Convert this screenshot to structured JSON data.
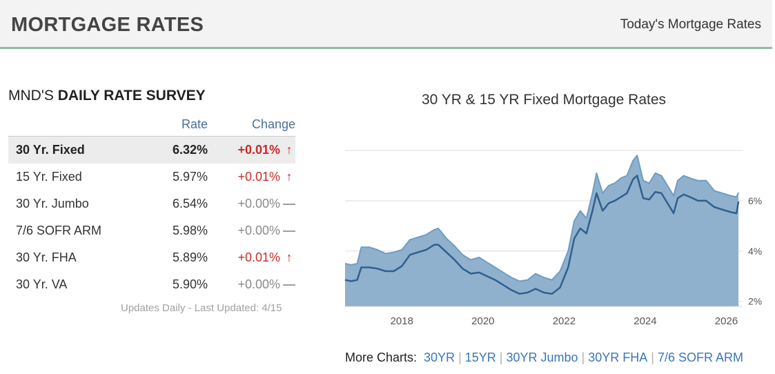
{
  "header": {
    "title": "MORTGAGE RATES",
    "link": "Today's Mortgage Rates"
  },
  "survey": {
    "title_prefix": "MND'S",
    "title_bold": "DAILY RATE SURVEY",
    "col_rate": "Rate",
    "col_change": "Change",
    "rows": [
      {
        "product": "30 Yr. Fixed",
        "rate": "6.32%",
        "change": "+0.01%",
        "dir": "up"
      },
      {
        "product": "15 Yr. Fixed",
        "rate": "5.97%",
        "change": "+0.01%",
        "dir": "up"
      },
      {
        "product": "30 Yr. Jumbo",
        "rate": "6.54%",
        "change": "+0.00%",
        "dir": "flat"
      },
      {
        "product": "7/6 SOFR ARM",
        "rate": "5.98%",
        "change": "+0.00%",
        "dir": "flat"
      },
      {
        "product": "30 Yr. FHA",
        "rate": "5.89%",
        "change": "+0.01%",
        "dir": "up"
      },
      {
        "product": "30 Yr. VA",
        "rate": "5.90%",
        "change": "+0.00%",
        "dir": "flat"
      }
    ],
    "updated": "Updates Daily - Last Updated: 4/15"
  },
  "colors": {
    "accent": "#8bbfa3",
    "header_link": "#4a6f9a",
    "up": "#cc2a2a",
    "flat": "#8a8a8a",
    "series_30yr": "#6f9cc2",
    "series_15yr": "#2e5f8f"
  },
  "chart_data": {
    "type": "area",
    "title": "30 YR & 15 YR Fixed Mortgage Rates",
    "xlabel": "",
    "ylabel": "",
    "xlim": [
      2016.6,
      2026.4
    ],
    "ylim": [
      1.8,
      8.0
    ],
    "xticks": [
      2018,
      2020,
      2022,
      2024,
      2026
    ],
    "yticks": [
      2,
      4,
      6
    ],
    "ytick_labels": [
      "2%",
      "4%",
      "6%"
    ],
    "grid": true,
    "series": [
      {
        "x": [
          2016.6,
          2016.75,
          2016.9,
          2017.0,
          2017.2,
          2017.4,
          2017.6,
          2017.8,
          2018.0,
          2018.2,
          2018.4,
          2018.6,
          2018.8,
          2018.9,
          2019.1,
          2019.3,
          2019.5,
          2019.7,
          2019.9,
          2020.1,
          2020.3,
          2020.5,
          2020.7,
          2020.9,
          2021.1,
          2021.3,
          2021.5,
          2021.7,
          2021.9,
          2022.1,
          2022.25,
          2022.4,
          2022.55,
          2022.7,
          2022.8,
          2022.95,
          2023.1,
          2023.25,
          2023.4,
          2023.55,
          2023.7,
          2023.8,
          2023.95,
          2024.1,
          2024.25,
          2024.4,
          2024.55,
          2024.7,
          2024.8,
          2024.95,
          2025.1,
          2025.3,
          2025.5,
          2025.7,
          2025.9,
          2026.1,
          2026.25,
          2026.3
        ],
        "values": [
          3.5,
          3.45,
          3.5,
          4.15,
          4.15,
          4.05,
          3.9,
          3.95,
          4.05,
          4.45,
          4.55,
          4.65,
          4.85,
          4.9,
          4.5,
          4.2,
          3.85,
          3.65,
          3.75,
          3.55,
          3.35,
          3.15,
          2.95,
          2.8,
          2.85,
          3.1,
          2.95,
          2.85,
          3.2,
          4.0,
          5.2,
          5.6,
          5.3,
          6.3,
          7.1,
          6.3,
          6.6,
          6.7,
          6.9,
          7.0,
          7.6,
          7.8,
          6.8,
          6.7,
          7.1,
          7.0,
          6.6,
          6.2,
          6.8,
          7.0,
          6.9,
          6.8,
          6.8,
          6.4,
          6.3,
          6.2,
          6.15,
          6.32
        ]
      },
      {
        "x": [
          2016.6,
          2016.75,
          2016.9,
          2017.0,
          2017.2,
          2017.4,
          2017.6,
          2017.8,
          2018.0,
          2018.2,
          2018.4,
          2018.6,
          2018.8,
          2018.9,
          2019.1,
          2019.3,
          2019.5,
          2019.7,
          2019.9,
          2020.1,
          2020.3,
          2020.5,
          2020.7,
          2020.9,
          2021.1,
          2021.3,
          2021.5,
          2021.7,
          2021.9,
          2022.1,
          2022.25,
          2022.4,
          2022.55,
          2022.7,
          2022.8,
          2022.95,
          2023.1,
          2023.25,
          2023.4,
          2023.55,
          2023.7,
          2023.8,
          2023.95,
          2024.1,
          2024.25,
          2024.4,
          2024.55,
          2024.7,
          2024.8,
          2024.95,
          2025.1,
          2025.3,
          2025.5,
          2025.7,
          2025.9,
          2026.1,
          2026.25,
          2026.3
        ],
        "values": [
          2.85,
          2.8,
          2.85,
          3.35,
          3.35,
          3.3,
          3.2,
          3.2,
          3.4,
          3.85,
          3.95,
          4.05,
          4.25,
          4.25,
          3.95,
          3.65,
          3.3,
          3.1,
          3.15,
          3.0,
          2.85,
          2.65,
          2.45,
          2.3,
          2.35,
          2.5,
          2.35,
          2.3,
          2.55,
          3.35,
          4.5,
          4.9,
          4.7,
          5.6,
          6.3,
          5.6,
          5.9,
          6.0,
          6.15,
          6.3,
          6.85,
          7.0,
          6.1,
          6.05,
          6.35,
          6.3,
          5.9,
          5.5,
          6.1,
          6.25,
          6.15,
          6.0,
          6.0,
          5.75,
          5.65,
          5.55,
          5.5,
          5.97
        ]
      }
    ]
  },
  "more_charts": {
    "label": "More Charts:",
    "links": [
      "30YR",
      "15YR",
      "30YR Jumbo",
      "30YR FHA",
      "7/6 SOFR ARM"
    ]
  }
}
